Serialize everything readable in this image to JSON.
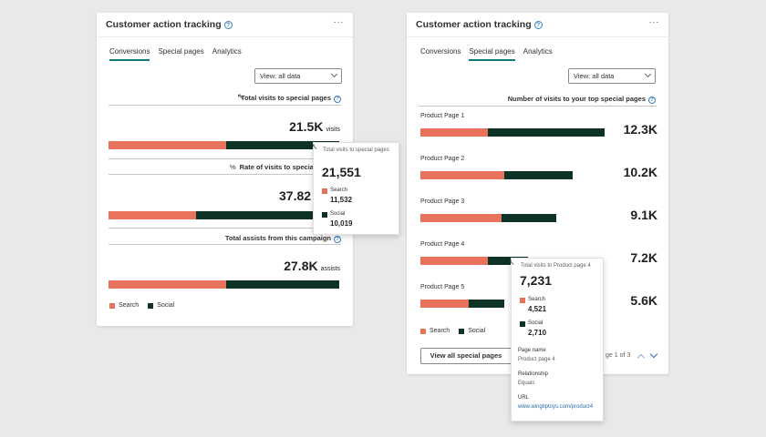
{
  "left_card": {
    "title": "Customer action tracking",
    "info_icon": "?",
    "more_icon": "···",
    "tabs": [
      {
        "label": "Conversions",
        "active": true
      },
      {
        "label": "Special pages",
        "active": false
      },
      {
        "label": "Analytics",
        "active": false
      }
    ],
    "view_select": "View: all data",
    "metrics": [
      {
        "label": "Total visits to special pages",
        "value": "21.5K",
        "unit": "visits",
        "search_share": 0.51
      },
      {
        "label": "Rate of visits to special pages",
        "value": "37.82",
        "unit": "",
        "search_share": 0.38
      },
      {
        "label": "Total assists from this campaign",
        "value": "27.8K",
        "unit": "assists",
        "search_share": 0.51
      }
    ],
    "percent_icon": "%",
    "legend": {
      "search": "Search",
      "social": "Social"
    },
    "tooltip": {
      "title": "Total visits to special pages",
      "total": "21,551",
      "search_label": "Search",
      "search_value": "11,532",
      "social_label": "Social",
      "social_value": "10,019"
    }
  },
  "right_card": {
    "title": "Customer action tracking",
    "info_icon": "?",
    "more_icon": "···",
    "tabs": [
      {
        "label": "Conversions",
        "active": false
      },
      {
        "label": "Special pages",
        "active": true
      },
      {
        "label": "Analytics",
        "active": false
      }
    ],
    "view_select": "View: all data",
    "section_label": "Number of visits to your top special pages",
    "rows": [
      {
        "label": "Product Page 1",
        "value": "12.3K",
        "total": 12.3,
        "search": 4.5
      },
      {
        "label": "Product Page 2",
        "value": "10.2K",
        "total": 10.2,
        "search": 5.6
      },
      {
        "label": "Product Page 3",
        "value": "9.1K",
        "total": 9.1,
        "search": 5.4
      },
      {
        "label": "Product Page 4",
        "value": "7.2K",
        "total": 7.2,
        "search": 4.5
      },
      {
        "label": "Product Page 5",
        "value": "5.6K",
        "total": 5.6,
        "search": 3.2
      }
    ],
    "legend": {
      "search": "Search",
      "social": "Social"
    },
    "view_all_button": "View all special pages",
    "pager_text": "ge 1 of 3",
    "tooltip": {
      "title": "Total visits to Product page 4",
      "total": "7,231",
      "search_label": "Search",
      "search_value": "4,521",
      "social_label": "Social",
      "social_value": "2,710",
      "page_name_label": "Page name",
      "page_name_value": "Product page 4",
      "relationship_label": "Relationship",
      "relationship_value": "Equals",
      "url_label": "URL",
      "url_value": "www.wingtiptoys.com/product4"
    }
  },
  "colors": {
    "search": "#e8725b",
    "social": "#0d3326",
    "accent": "#0f7b7b",
    "link": "#2b6cb0"
  }
}
